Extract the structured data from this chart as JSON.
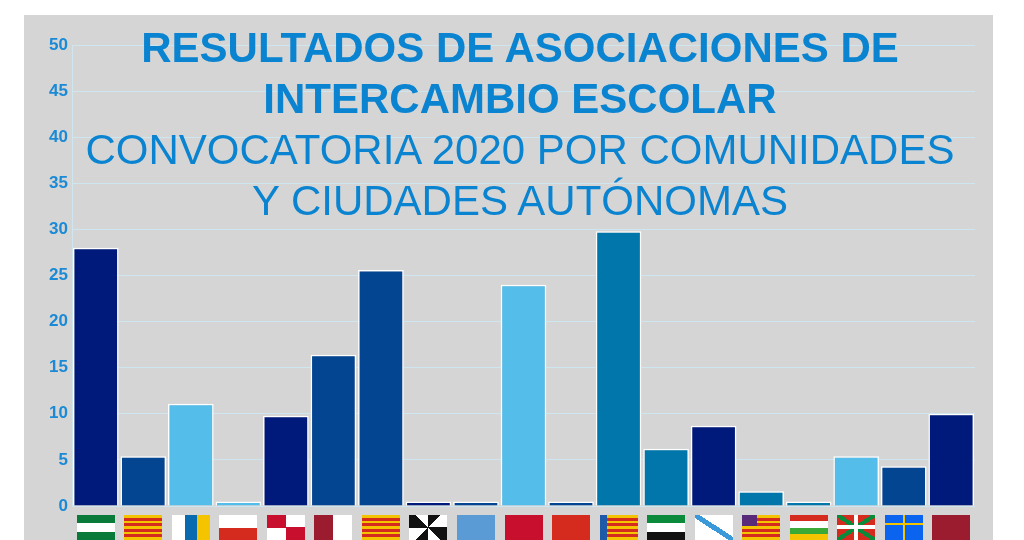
{
  "chart_data": {
    "type": "bar",
    "title": "RESULTADOS DE ASOCIACIONES DE INTERCAMBIO ESCOLAR",
    "subtitle": "CONVOCATORIA 2020 POR COMUNIDADES Y CIUDADES AUTÓNOMAS",
    "categories": [
      null,
      null,
      null,
      null,
      null,
      null,
      null,
      null,
      null,
      null,
      null,
      null,
      null,
      null,
      null,
      null,
      null,
      null,
      null
    ],
    "values": [
      28,
      5.4,
      11.1,
      0.5,
      9.8,
      16.4,
      25.6,
      0.5,
      0.5,
      24,
      0.5,
      29.8,
      6.2,
      8.7,
      1.6,
      0.5,
      5.4,
      4.3,
      10
    ],
    "colors": [
      "#001a7c",
      "#044592",
      "#55bdea",
      "#55bdea",
      "#001a7c",
      "#044592",
      "#044592",
      "#001a7c",
      "#044592",
      "#55bdea",
      "#044592",
      "#0076ab",
      "#0076ab",
      "#001a7c",
      "#0076ab",
      "#0076ab",
      "#55bdea",
      "#044592",
      "#001a7c"
    ],
    "ylim": [
      0,
      50
    ],
    "yticks": [
      0,
      5,
      10,
      15,
      20,
      25,
      30,
      35,
      40,
      45,
      50
    ],
    "grid": "y"
  }
}
